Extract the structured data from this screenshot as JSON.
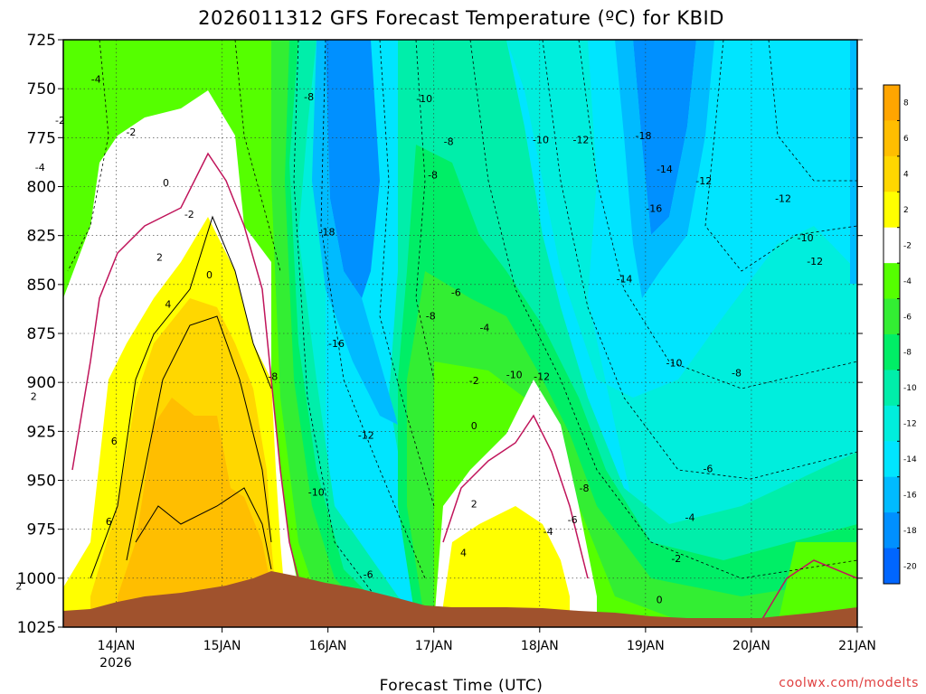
{
  "chart_data": {
    "type": "heatmap",
    "title": "2026011312 GFS Forecast Temperature (ºC) for KBID",
    "xlabel": "Forecast Time (UTC)",
    "ylabel": "",
    "credit": "coolwx.com/modelts",
    "x_ticks": [
      "14JAN",
      "15JAN",
      "16JAN",
      "17JAN",
      "18JAN",
      "19JAN",
      "20JAN",
      "21JAN"
    ],
    "x_year_label": "2026",
    "x_range_days": [
      13.5,
      21.0
    ],
    "y_ticks": [
      725,
      750,
      775,
      800,
      825,
      850,
      875,
      900,
      925,
      950,
      975,
      1000,
      1025
    ],
    "y_range_hpa": [
      725,
      1025
    ],
    "colorbar": {
      "levels": [
        8,
        6,
        4,
        2,
        -2,
        -4,
        -6,
        -8,
        -10,
        -12,
        -14,
        -16,
        -18,
        -20
      ],
      "colors": [
        "#ffa500",
        "#ffbe00",
        "#ffd700",
        "#ffff00",
        "#ffffff",
        "#55ff00",
        "#33ee33",
        "#00ee66",
        "#00eeaa",
        "#00eedd",
        "#00e5ff",
        "#00bbff",
        "#0090ff",
        "#0066ff"
      ]
    },
    "contour_labels": [
      {
        "text": "-4",
        "t": 13.81,
        "p": 745
      },
      {
        "text": "-2",
        "t": 13.47,
        "p": 766
      },
      {
        "text": "-4",
        "t": 13.28,
        "p": 790
      },
      {
        "text": "-2",
        "t": 14.14,
        "p": 772
      },
      {
        "text": "0",
        "t": 14.47,
        "p": 798
      },
      {
        "text": "-2",
        "t": 14.69,
        "p": 814
      },
      {
        "text": "2",
        "t": 14.41,
        "p": 836
      },
      {
        "text": "0",
        "t": 14.88,
        "p": 845
      },
      {
        "text": "4",
        "t": 14.49,
        "p": 860
      },
      {
        "text": "2",
        "t": 13.22,
        "p": 907
      },
      {
        "text": "6",
        "t": 13.98,
        "p": 930
      },
      {
        "text": "6",
        "t": 13.93,
        "p": 971
      },
      {
        "text": "2",
        "t": 13.08,
        "p": 1004
      },
      {
        "text": "-8",
        "t": 15.82,
        "p": 754
      },
      {
        "text": "-18",
        "t": 15.99,
        "p": 823
      },
      {
        "text": "-16",
        "t": 16.08,
        "p": 880
      },
      {
        "text": "-8",
        "t": 15.48,
        "p": 897
      },
      {
        "text": "-12",
        "t": 16.36,
        "p": 927
      },
      {
        "text": "-10",
        "t": 15.89,
        "p": 956
      },
      {
        "text": "-6",
        "t": 16.38,
        "p": 998
      },
      {
        "text": "4",
        "t": 17.28,
        "p": 987
      },
      {
        "text": "-10",
        "t": 16.91,
        "p": 755
      },
      {
        "text": "-8",
        "t": 17.14,
        "p": 777
      },
      {
        "text": "-8",
        "t": 16.99,
        "p": 794
      },
      {
        "text": "-6",
        "t": 17.21,
        "p": 854
      },
      {
        "text": "-8",
        "t": 16.97,
        "p": 866
      },
      {
        "text": "-4",
        "t": 17.48,
        "p": 872
      },
      {
        "text": "-2",
        "t": 17.38,
        "p": 899
      },
      {
        "text": "0",
        "t": 17.38,
        "p": 922
      },
      {
        "text": "2",
        "t": 17.38,
        "p": 962
      },
      {
        "text": "-10",
        "t": 18.01,
        "p": 776
      },
      {
        "text": "-12",
        "t": 18.39,
        "p": 776
      },
      {
        "text": "-18",
        "t": 18.98,
        "p": 774
      },
      {
        "text": "-14",
        "t": 19.18,
        "p": 791
      },
      {
        "text": "-12",
        "t": 19.55,
        "p": 797
      },
      {
        "text": "-16",
        "t": 19.08,
        "p": 811
      },
      {
        "text": "-14",
        "t": 18.8,
        "p": 847
      },
      {
        "text": "-10",
        "t": 17.76,
        "p": 896
      },
      {
        "text": "-12",
        "t": 18.02,
        "p": 897
      },
      {
        "text": "-10",
        "t": 19.27,
        "p": 890
      },
      {
        "text": "-8",
        "t": 19.86,
        "p": 895
      },
      {
        "text": "-8",
        "t": 18.42,
        "p": 954
      },
      {
        "text": "-6",
        "t": 18.31,
        "p": 970
      },
      {
        "text": "-4",
        "t": 18.08,
        "p": 976
      },
      {
        "text": "-6",
        "t": 19.59,
        "p": 944
      },
      {
        "text": "-4",
        "t": 19.42,
        "p": 969
      },
      {
        "text": "-2",
        "t": 19.29,
        "p": 990
      },
      {
        "text": "0",
        "t": 19.13,
        "p": 1011
      },
      {
        "text": "-12",
        "t": 20.3,
        "p": 806
      },
      {
        "text": "-10",
        "t": 20.51,
        "p": 826
      },
      {
        "text": "-12",
        "t": 20.6,
        "p": 838
      }
    ]
  }
}
